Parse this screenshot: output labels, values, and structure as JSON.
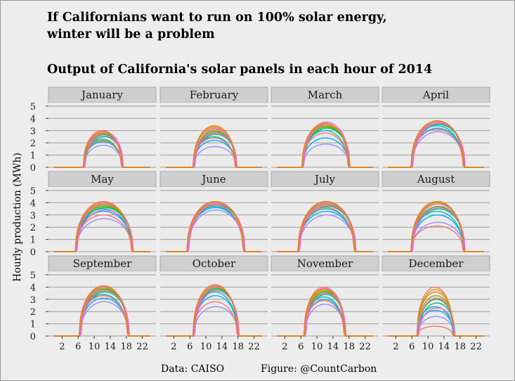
{
  "header": {
    "title_line1": "If Californians want to run on 100% solar energy,",
    "title_line2": "winter will be a problem",
    "subtitle": "Output of California's solar panels in each hour of 2014"
  },
  "footer": {
    "data_source": "Data: CAISO",
    "figure_credit": "Figure: @CountCarbon"
  },
  "chart_data": {
    "type": "line",
    "title": "Output of California's solar panels in each hour of 2014",
    "xlabel": "",
    "ylabel": "Hourly production (MWh)",
    "xlim": [
      0,
      24
    ],
    "ylim": [
      0,
      5
    ],
    "x_ticks": [
      2,
      6,
      10,
      14,
      18,
      22
    ],
    "y_ticks": [
      0,
      1,
      2,
      3,
      4,
      5
    ],
    "grid": true,
    "legend": "none",
    "series_colors": [
      "#f8766d",
      "#d89000",
      "#a3a500",
      "#39b600",
      "#00bf7d",
      "#00bfc4",
      "#00b0f6",
      "#9590ff",
      "#e76bf3",
      "#ff62bc"
    ],
    "panels": [
      {
        "month": "January",
        "sunrise": 7.5,
        "sunset": 17.0,
        "peaks": [
          3.0,
          2.9,
          2.8,
          2.7,
          2.5,
          2.3,
          2.1,
          1.8,
          2.6,
          2.9,
          3.0,
          2.2
        ]
      },
      {
        "month": "February",
        "sunrise": 7.0,
        "sunset": 17.5,
        "peaks": [
          3.3,
          3.2,
          3.0,
          2.9,
          2.7,
          2.5,
          2.2,
          1.7,
          3.1,
          2.8,
          2.4,
          3.4
        ]
      },
      {
        "month": "March",
        "sunrise": 6.5,
        "sunset": 18.0,
        "peaks": [
          3.6,
          3.5,
          3.4,
          3.3,
          3.2,
          3.0,
          2.4,
          1.9,
          3.7,
          3.5,
          2.8,
          3.6
        ]
      },
      {
        "month": "April",
        "sunrise": 6.0,
        "sunset": 19.0,
        "peaks": [
          3.8,
          3.8,
          3.7,
          3.6,
          3.5,
          3.4,
          3.2,
          2.9,
          3.7,
          3.6,
          3.1,
          3.8
        ]
      },
      {
        "month": "May",
        "sunrise": 5.5,
        "sunset": 19.5,
        "peaks": [
          4.1,
          3.9,
          3.8,
          3.7,
          3.6,
          3.5,
          3.3,
          2.7,
          3.9,
          3.4,
          3.0,
          4.0
        ]
      },
      {
        "month": "June",
        "sunrise": 5.5,
        "sunset": 19.5,
        "peaks": [
          4.1,
          4.0,
          4.0,
          3.9,
          3.8,
          3.7,
          3.6,
          3.4,
          4.0,
          3.9,
          3.8,
          4.1
        ]
      },
      {
        "month": "July",
        "sunrise": 5.5,
        "sunset": 19.5,
        "peaks": [
          4.1,
          4.0,
          3.9,
          3.8,
          3.7,
          3.5,
          3.3,
          3.0,
          4.0,
          3.8,
          3.6,
          4.1
        ]
      },
      {
        "month": "August",
        "sunrise": 6.0,
        "sunset": 19.0,
        "peaks": [
          4.1,
          4.0,
          3.9,
          3.7,
          3.5,
          3.3,
          3.0,
          2.4,
          3.9,
          3.6,
          2.1,
          4.1
        ]
      },
      {
        "month": "September",
        "sunrise": 6.5,
        "sunset": 18.5,
        "peaks": [
          4.1,
          4.0,
          3.9,
          3.8,
          3.6,
          3.4,
          3.1,
          2.8,
          4.0,
          3.7,
          3.3,
          4.1
        ]
      },
      {
        "month": "October",
        "sunrise": 7.0,
        "sunset": 18.0,
        "peaks": [
          4.2,
          4.1,
          4.0,
          3.9,
          3.8,
          3.6,
          3.3,
          2.4,
          4.0,
          3.7,
          2.8,
          4.1
        ]
      },
      {
        "month": "November",
        "sunrise": 7.0,
        "sunset": 17.0,
        "peaks": [
          4.0,
          3.9,
          3.7,
          3.6,
          3.4,
          3.2,
          3.0,
          2.6,
          3.9,
          3.5,
          2.9,
          3.8
        ]
      },
      {
        "month": "December",
        "sunrise": 7.5,
        "sunset": 16.5,
        "peaks": [
          4.0,
          3.6,
          3.3,
          3.0,
          2.7,
          2.4,
          2.1,
          1.6,
          3.1,
          2.3,
          0.8,
          3.8
        ]
      }
    ]
  }
}
